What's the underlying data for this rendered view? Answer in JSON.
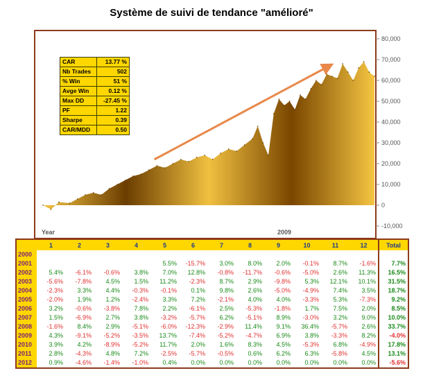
{
  "title": "Système de suivi de tendance \"amélioré\"",
  "stats": [
    {
      "k": "CAR",
      "v": "13.77 %"
    },
    {
      "k": "Nb Trades",
      "v": "502"
    },
    {
      "k": "% Win",
      "v": "51 %"
    },
    {
      "k": "Avge Win",
      "v": "0.12 %"
    },
    {
      "k": "Max DD",
      "v": "-27.45 %"
    },
    {
      "k": "PF",
      "v": "1.22"
    },
    {
      "k": "Sharpe",
      "v": "0.39"
    },
    {
      "k": "CAR/MDD",
      "v": "0.50"
    }
  ],
  "colors": {
    "fill_dark": "#6b3d00",
    "fill_light": "#f5c542",
    "frame": "#8b3a1a",
    "arrow": "#e8884a",
    "table_header": "#ffd700"
  },
  "chart_data": [
    {
      "type": "area",
      "x_label": "Year",
      "x_tick_label": "2009",
      "ylim": [
        -10000,
        80000
      ],
      "y_ticks": [
        -10000,
        0,
        10000,
        20000,
        30000,
        40000,
        50000,
        60000,
        70000,
        80000
      ],
      "y_tick_labels": [
        "-10,000",
        "0",
        "10,000",
        "20,000",
        "30,000",
        "40,000",
        "50,000",
        "60,000",
        "70,000",
        "80,000"
      ],
      "x_range": [
        2000,
        2012.5
      ],
      "x": [
        2000.0,
        2000.3,
        2000.6,
        2001.0,
        2001.3,
        2001.6,
        2001.9,
        2002.2,
        2002.5,
        2002.8,
        2003.1,
        2003.4,
        2003.7,
        2004.0,
        2004.3,
        2004.6,
        2004.9,
        2005.2,
        2005.5,
        2005.8,
        2006.1,
        2006.4,
        2006.7,
        2007.0,
        2007.3,
        2007.6,
        2007.9,
        2008.1,
        2008.3,
        2008.5,
        2008.7,
        2008.9,
        2009.1,
        2009.3,
        2009.5,
        2009.7,
        2009.9,
        2010.1,
        2010.3,
        2010.5,
        2010.7,
        2010.9,
        2011.1,
        2011.3,
        2011.5,
        2011.7,
        2011.9,
        2012.1,
        2012.3,
        2012.5
      ],
      "y": [
        0,
        -2000,
        1500,
        1000,
        3000,
        5000,
        6000,
        5000,
        8000,
        10000,
        12000,
        14000,
        15000,
        17000,
        19000,
        18000,
        20000,
        22000,
        21000,
        23000,
        24000,
        22000,
        25000,
        27000,
        26000,
        29000,
        32000,
        38000,
        30000,
        24000,
        44000,
        51000,
        48000,
        50000,
        46000,
        53000,
        51000,
        56000,
        60000,
        58000,
        63000,
        62000,
        61000,
        68000,
        64000,
        60000,
        66000,
        69000,
        64000,
        62000
      ],
      "arrow": {
        "from": [
          2004.2,
          22000
        ],
        "to": [
          2010.8,
          67000
        ]
      }
    },
    {
      "type": "table",
      "columns": [
        "1",
        "2",
        "3",
        "4",
        "5",
        "6",
        "7",
        "8",
        "9",
        "10",
        "11",
        "12",
        "Total"
      ],
      "rows": [
        {
          "year": "2000",
          "cells": [
            "",
            "",
            "",
            "",
            "",
            "",
            "",
            "",
            "",
            "",
            "",
            "",
            ""
          ]
        },
        {
          "year": "2001",
          "cells": [
            "",
            "",
            "",
            "",
            "5.5%",
            "-15.7%",
            "3.0%",
            "8.0%",
            "2.0%",
            "-0.1%",
            "8.7%",
            "-1.6%",
            "7.7%"
          ]
        },
        {
          "year": "2002",
          "cells": [
            "5.4%",
            "-6.1%",
            "-0.6%",
            "3.8%",
            "7.0%",
            "12.8%",
            "-0.8%",
            "-11.7%",
            "-0.6%",
            "-5.0%",
            "2.6%",
            "11.3%",
            "16.5%"
          ]
        },
        {
          "year": "2003",
          "cells": [
            "-5.6%",
            "-7.8%",
            "4.5%",
            "1.5%",
            "11.2%",
            "-2.3%",
            "8.7%",
            "2.9%",
            "-9.8%",
            "5.3%",
            "12.1%",
            "10.1%",
            "31.5%"
          ]
        },
        {
          "year": "2004",
          "cells": [
            "-2.3%",
            "3.3%",
            "4.4%",
            "-0.3%",
            "-0.1%",
            "0.1%",
            "9.8%",
            "2.6%",
            "-5.0%",
            "-4.9%",
            "7.4%",
            "3.5%",
            "18.7%"
          ]
        },
        {
          "year": "2005",
          "cells": [
            "-2.0%",
            "1.9%",
            "1.2%",
            "-2.4%",
            "3.3%",
            "7.2%",
            "-2.1%",
            "4.0%",
            "4.0%",
            "-3.3%",
            "5.3%",
            "-7.3%",
            "9.2%"
          ]
        },
        {
          "year": "2006",
          "cells": [
            "3.2%",
            "-0.6%",
            "-3.8%",
            "7.8%",
            "2.2%",
            "-6.1%",
            "2.5%",
            "-5.3%",
            "-1.8%",
            "1.7%",
            "7.5%",
            "2.0%",
            "8.5%"
          ]
        },
        {
          "year": "2007",
          "cells": [
            "1.5%",
            "-6.9%",
            "2.7%",
            "3.8%",
            "-3.2%",
            "-5.7%",
            "6.2%",
            "-5.1%",
            "8.9%",
            "-3.0%",
            "3.2%",
            "9.0%",
            "10.0%"
          ]
        },
        {
          "year": "2008",
          "cells": [
            "-1.6%",
            "8.4%",
            "2.9%",
            "-5.1%",
            "-6.0%",
            "-12.3%",
            "-2.9%",
            "11.4%",
            "9.1%",
            "36.4%",
            "-5.7%",
            "2.6%",
            "33.7%"
          ]
        },
        {
          "year": "2009",
          "cells": [
            "4.3%",
            "-9.1%",
            "-5.2%",
            "-3.5%",
            "13.7%",
            "-7.4%",
            "-5.2%",
            "-4.7%",
            "6.9%",
            "3.8%",
            "-3.3%",
            "8.2%",
            "-4.0%"
          ]
        },
        {
          "year": "2010",
          "cells": [
            "3.9%",
            "4.2%",
            "-8.9%",
            "-5.2%",
            "11.7%",
            "2.0%",
            "1.6%",
            "8.3%",
            "4.5%",
            "-5.3%",
            "6.8%",
            "-4.9%",
            "17.8%"
          ]
        },
        {
          "year": "2011",
          "cells": [
            "2.8%",
            "-4.3%",
            "4.8%",
            "7.2%",
            "-2.5%",
            "-5.7%",
            "-0.5%",
            "0.6%",
            "6.2%",
            "6.3%",
            "-5.8%",
            "4.5%",
            "13.1%"
          ]
        },
        {
          "year": "2012",
          "cells": [
            "0.9%",
            "-4.6%",
            "-1.4%",
            "-1.0%",
            "0.4%",
            "0.0%",
            "0.0%",
            "0.0%",
            "0.0%",
            "0.0%",
            "0.0%",
            "0.0%",
            "-5.6%"
          ]
        }
      ]
    }
  ]
}
